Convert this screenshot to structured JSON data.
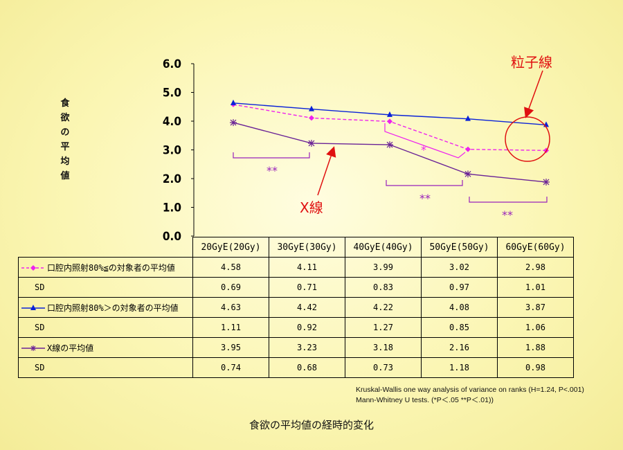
{
  "chart_data": {
    "type": "line",
    "ylabel": "食欲の平均値",
    "ylim": [
      0,
      6
    ],
    "yticks": [
      "6.0",
      "5.0",
      "4.0",
      "3.0",
      "2.0",
      "1.0",
      "0.0"
    ],
    "categories": [
      "20GyE(20Gy)",
      "30GyE(30Gy)",
      "40GyE(40Gy)",
      "50GyE(50Gy)",
      "60GyE(60Gy)"
    ],
    "series": [
      {
        "name": "口腔内照射80%≦の対象者の平均値",
        "values": [
          4.58,
          4.11,
          3.99,
          3.02,
          2.98
        ],
        "sd": [
          0.69,
          0.71,
          0.83,
          0.97,
          1.01
        ],
        "color": "#ee22ee",
        "marker": "diamond",
        "dash": true
      },
      {
        "name": "口腔内照射80%＞の対象者の平均値",
        "values": [
          4.63,
          4.42,
          4.22,
          4.08,
          3.87
        ],
        "sd": [
          1.11,
          0.92,
          1.27,
          0.85,
          1.06
        ],
        "color": "#0a22d8",
        "marker": "triangle",
        "dash": false
      },
      {
        "name": "X線の平均値",
        "values": [
          3.95,
          3.23,
          3.18,
          2.16,
          1.88
        ],
        "sd": [
          0.74,
          0.68,
          0.73,
          1.18,
          0.98
        ],
        "color": "#6a2296",
        "marker": "asterisk",
        "dash": false
      }
    ],
    "sd_label": "SD",
    "significance": [
      {
        "label": "**",
        "color": "#9922bb"
      },
      {
        "label": "*",
        "color": "#ee22ee"
      },
      {
        "label": "**",
        "color": "#9922bb"
      },
      {
        "label": "**",
        "color": "#9922bb"
      }
    ],
    "annotations": [
      {
        "text": "粒子線",
        "color": "#e01010"
      },
      {
        "text": "X線",
        "color": "#e01010"
      }
    ],
    "notes": [
      "Kruskal-Wallis one way analysis of variance on ranks (H=1.24, P<.001)",
      "Mann-Whitney  U tests.   (*P＜.05   **P＜.01))"
    ],
    "caption": "食欲の平均値の経時的変化"
  }
}
